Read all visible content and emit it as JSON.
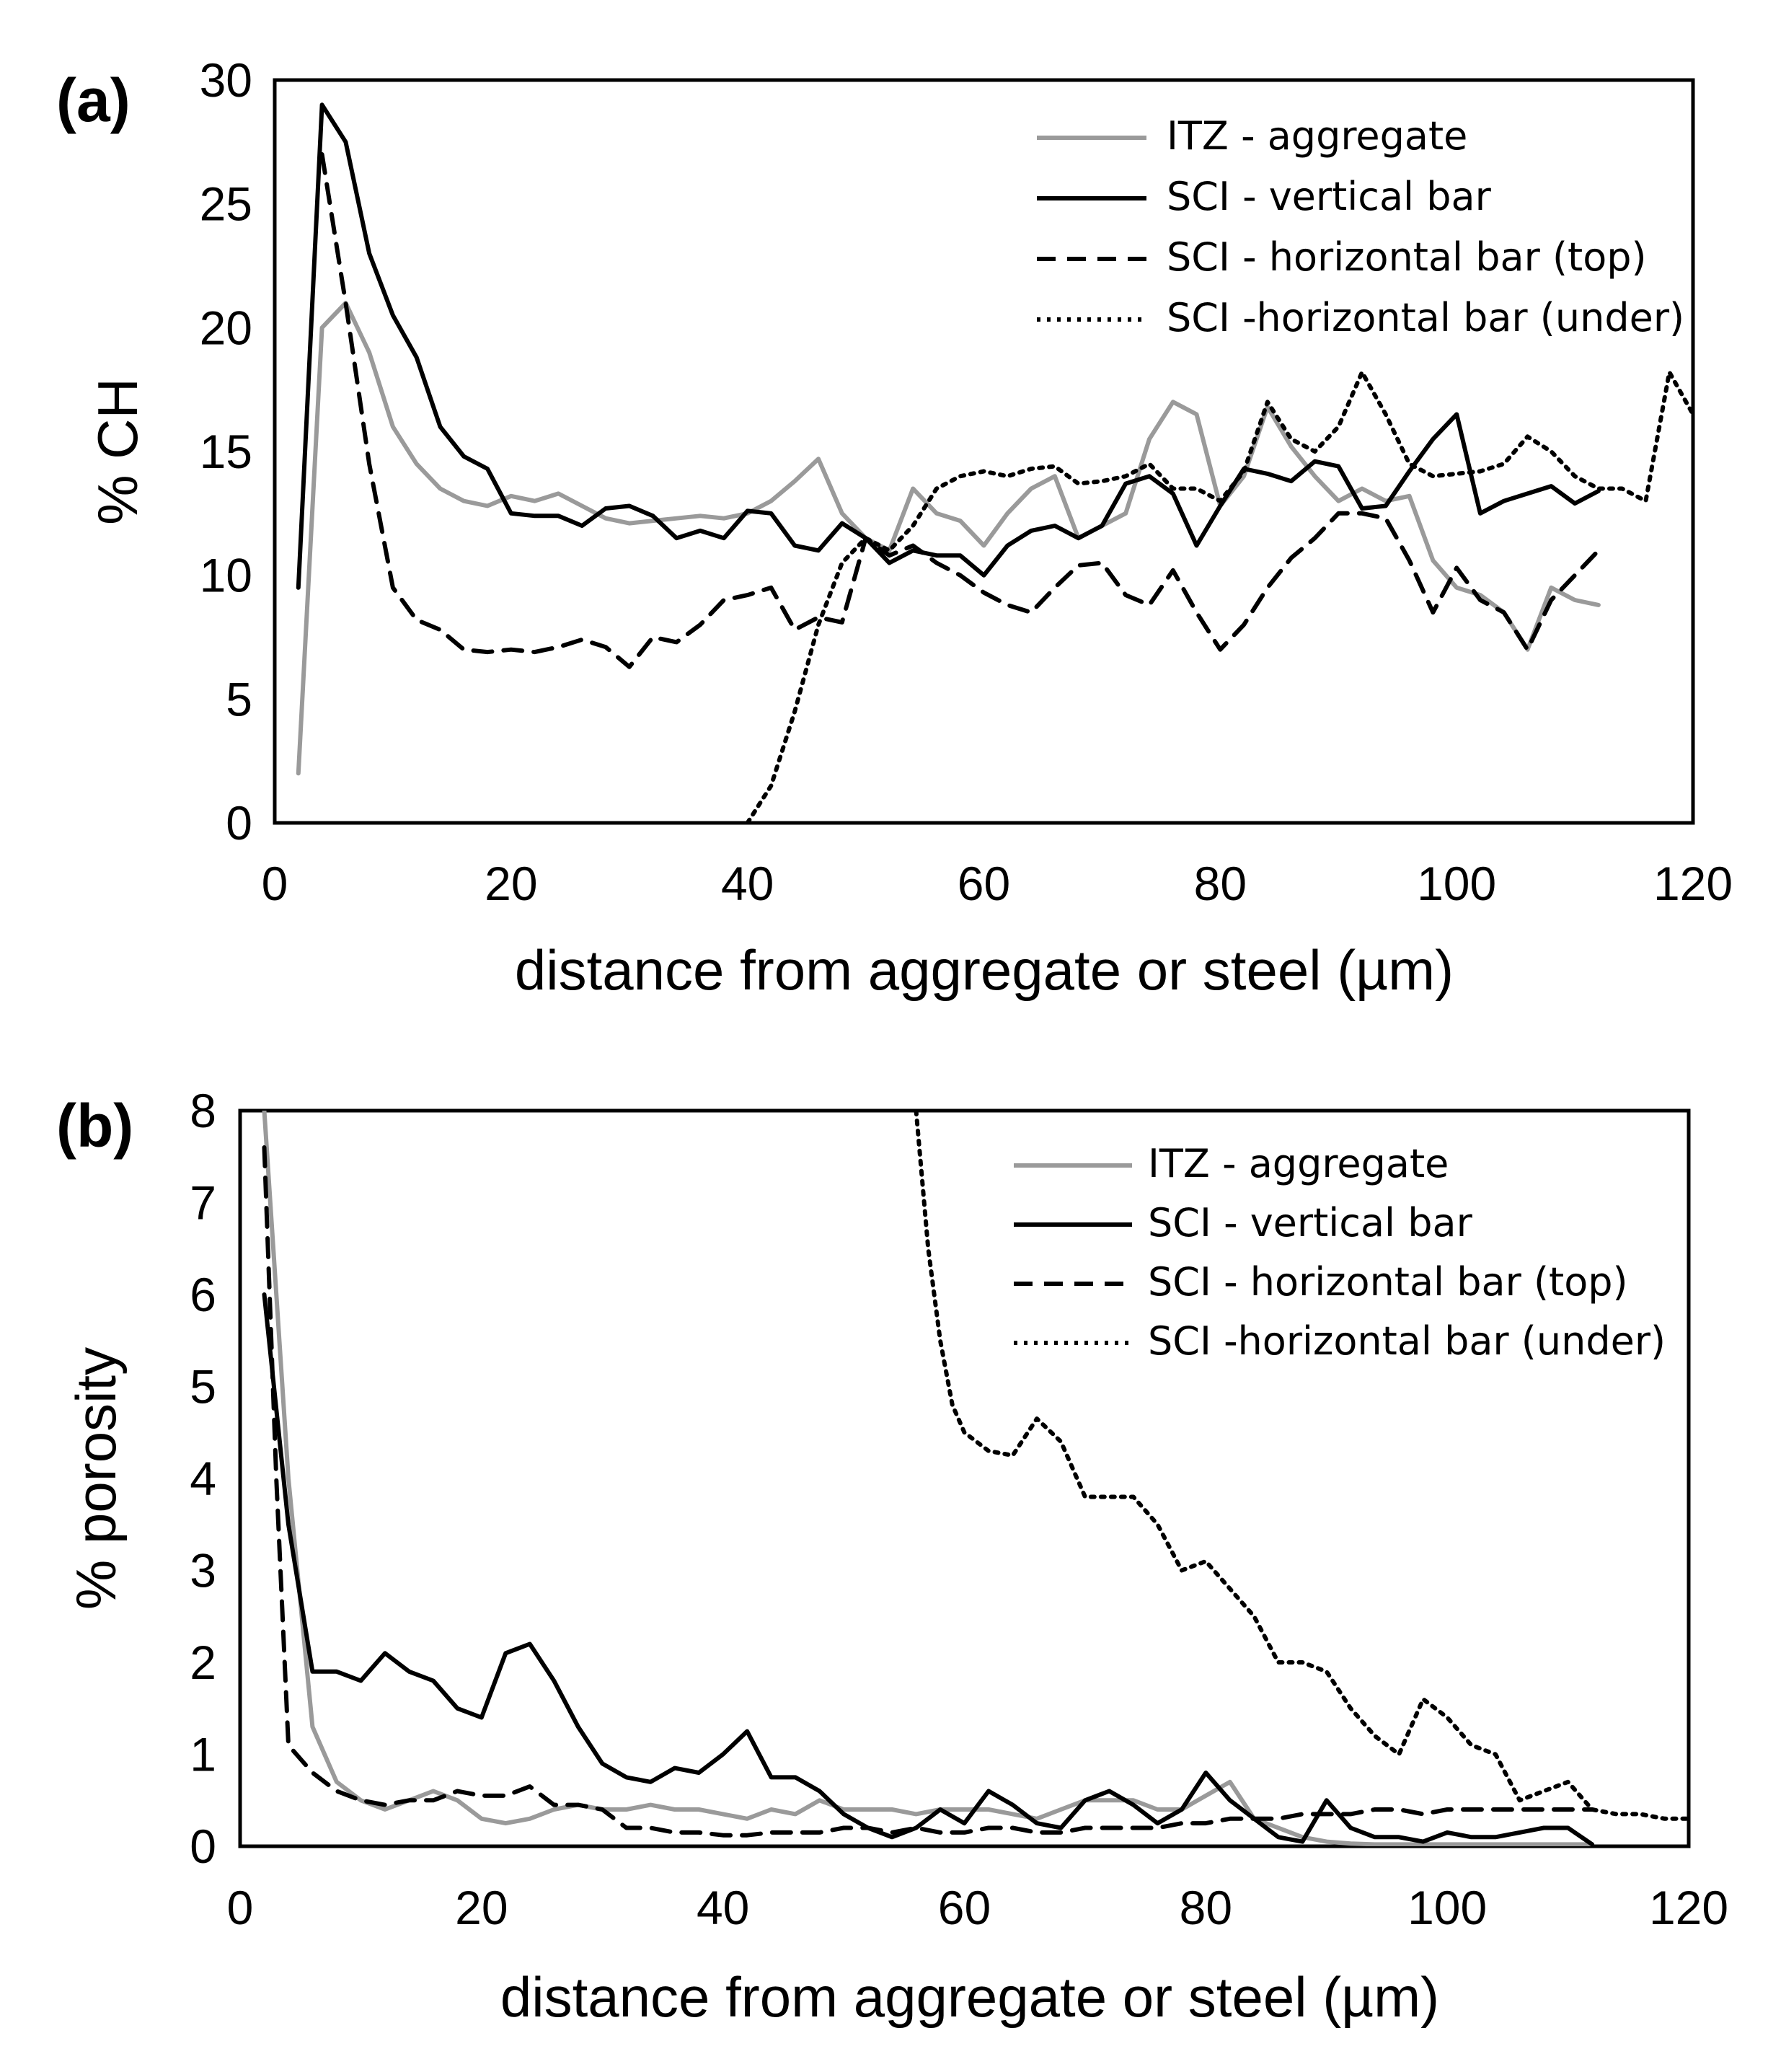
{
  "colors": {
    "itz": "#9a9a9a",
    "black": "#000000"
  },
  "chart_data": [
    {
      "type": "line",
      "panel_label": "(a)",
      "xlabel": "distance from aggregate or steel (µm)",
      "ylabel": "% CH",
      "xlim": [
        0,
        120
      ],
      "ylim": [
        0,
        30
      ],
      "xticks": [
        "0",
        "20",
        "40",
        "60",
        "80",
        "100",
        "120"
      ],
      "yticks": [
        "0",
        "5",
        "10",
        "15",
        "20",
        "25",
        "30"
      ],
      "legend_position": "top-right",
      "series": [
        {
          "name": "ITZ - aggregate",
          "style": "gray-solid",
          "x": [
            2,
            4,
            6,
            8,
            10,
            12,
            14,
            16,
            18,
            20,
            22,
            24,
            26,
            28,
            30,
            32,
            34,
            36,
            38,
            40,
            42,
            44,
            46,
            48,
            50,
            52,
            54,
            56,
            58,
            60,
            62,
            64,
            66,
            68,
            70,
            72,
            74,
            76,
            78,
            80,
            82,
            84,
            86,
            88,
            90,
            92,
            94,
            96,
            98,
            100,
            102,
            104,
            106,
            108,
            110,
            112
          ],
          "y": [
            2,
            20,
            21,
            19,
            16,
            14.5,
            13.5,
            13,
            12.8,
            13.2,
            13,
            13.3,
            12.8,
            12.3,
            12.1,
            12.2,
            12.3,
            12.4,
            12.3,
            12.5,
            13,
            13.8,
            14.7,
            12.5,
            11.5,
            11,
            13.5,
            12.5,
            12.2,
            11.2,
            12.5,
            13.5,
            14,
            11.5,
            12,
            12.5,
            15.5,
            17,
            16.5,
            12.8,
            14,
            16.8,
            15.2,
            14,
            13,
            13.5,
            13,
            13.2,
            10.6,
            9.5,
            9.2,
            8.5,
            7,
            9.5,
            9,
            8.8
          ]
        },
        {
          "name": "SCI - vertical bar",
          "style": "black-solid",
          "x": [
            2,
            4,
            6,
            8,
            10,
            12,
            14,
            16,
            18,
            20,
            22,
            24,
            26,
            28,
            30,
            32,
            34,
            36,
            38,
            40,
            42,
            44,
            46,
            48,
            50,
            52,
            54,
            56,
            58,
            60,
            62,
            64,
            66,
            68,
            70,
            72,
            74,
            76,
            78,
            80,
            82,
            84,
            86,
            88,
            90,
            92,
            94,
            96,
            98,
            100,
            102,
            104,
            106,
            108,
            110,
            112
          ],
          "y": [
            9.5,
            29,
            27.5,
            23,
            20.5,
            18.8,
            16,
            14.8,
            14.3,
            12.5,
            12.4,
            12.4,
            12,
            12.7,
            12.8,
            12.4,
            11.5,
            11.8,
            11.5,
            12.6,
            12.5,
            11.2,
            11,
            12.1,
            11.5,
            10.5,
            11,
            10.8,
            10.8,
            10,
            11.2,
            11.8,
            12,
            11.5,
            12,
            13.7,
            14,
            13.3,
            11.2,
            12.8,
            14.3,
            14.1,
            13.8,
            14.6,
            14.4,
            12.7,
            12.8,
            14.2,
            15.5,
            16.5,
            12.5,
            13,
            13.3,
            13.6,
            12.9,
            13.4
          ]
        },
        {
          "name": "SCI - horizontal bar (top)",
          "style": "black-dashed",
          "x": [
            4,
            6,
            8,
            10,
            12,
            14,
            16,
            18,
            20,
            22,
            24,
            26,
            28,
            30,
            32,
            34,
            36,
            38,
            40,
            42,
            44,
            46,
            48,
            50,
            52,
            54,
            56,
            58,
            60,
            62,
            64,
            66,
            68,
            70,
            72,
            74,
            76,
            78,
            80,
            82,
            84,
            86,
            88,
            90,
            92,
            94,
            96,
            98,
            100,
            102,
            104,
            106,
            108,
            110,
            112
          ],
          "y": [
            27,
            21,
            14.5,
            9.5,
            8.2,
            7.8,
            7,
            6.9,
            7,
            6.9,
            7.1,
            7.4,
            7.1,
            6.3,
            7.5,
            7.3,
            8,
            9,
            9.2,
            9.5,
            7.8,
            8.3,
            8.1,
            11.5,
            10.8,
            11.2,
            10.5,
            10,
            9.3,
            8.8,
            8.5,
            9.5,
            10.4,
            10.5,
            9.2,
            8.8,
            10.2,
            8.5,
            7,
            8,
            9.5,
            10.7,
            11.5,
            12.5,
            12.5,
            12.3,
            10.6,
            8.5,
            10.3,
            9,
            8.5,
            7,
            9,
            10,
            11
          ]
        },
        {
          "name": "SCI -horizontal bar (under)",
          "style": "black-dotted",
          "x": [
            40,
            42,
            44,
            46,
            48,
            50,
            52,
            54,
            56,
            58,
            60,
            62,
            64,
            66,
            68,
            70,
            72,
            74,
            76,
            78,
            80,
            82,
            84,
            86,
            88,
            90,
            92,
            94,
            96,
            98,
            100,
            102,
            104,
            106,
            108,
            110,
            112,
            114,
            116,
            118,
            120
          ],
          "y": [
            0,
            1.5,
            4.5,
            8,
            10.5,
            11.5,
            11,
            12,
            13.5,
            14,
            14.2,
            14,
            14.3,
            14.4,
            13.7,
            13.8,
            14,
            14.5,
            13.5,
            13.5,
            13,
            14.2,
            17,
            15.5,
            15,
            16,
            18.2,
            16.5,
            14.5,
            14,
            14.1,
            14.2,
            14.5,
            15.6,
            15,
            14,
            13.5,
            13.5,
            13,
            18.2,
            16.5
          ]
        }
      ]
    },
    {
      "type": "line",
      "panel_label": "(b)",
      "xlabel": "distance from aggregate or steel (µm)",
      "ylabel": "% porosity",
      "xlim": [
        0,
        120
      ],
      "ylim": [
        0,
        8
      ],
      "xticks": [
        "0",
        "20",
        "40",
        "60",
        "80",
        "100",
        "120"
      ],
      "yticks": [
        "0",
        "1",
        "2",
        "3",
        "4",
        "5",
        "6",
        "7",
        "8"
      ],
      "legend_position": "top-right",
      "series": [
        {
          "name": "ITZ - aggregate",
          "style": "gray-solid",
          "x": [
            2,
            4,
            6,
            8,
            10,
            12,
            14,
            16,
            18,
            20,
            22,
            24,
            26,
            28,
            30,
            32,
            34,
            36,
            38,
            40,
            42,
            44,
            46,
            48,
            50,
            52,
            54,
            56,
            58,
            60,
            62,
            64,
            66,
            68,
            70,
            72,
            74,
            76,
            78,
            80,
            82,
            84,
            86,
            88,
            90,
            92,
            94,
            96,
            98,
            100,
            102,
            104,
            106,
            108,
            110,
            112
          ],
          "y": [
            8,
            4,
            1.3,
            0.7,
            0.5,
            0.4,
            0.5,
            0.6,
            0.5,
            0.3,
            0.25,
            0.3,
            0.4,
            0.45,
            0.4,
            0.4,
            0.45,
            0.4,
            0.4,
            0.35,
            0.3,
            0.4,
            0.35,
            0.5,
            0.4,
            0.4,
            0.4,
            0.35,
            0.4,
            0.4,
            0.4,
            0.35,
            0.3,
            0.4,
            0.5,
            0.5,
            0.5,
            0.4,
            0.4,
            0.55,
            0.7,
            0.3,
            0.2,
            0.1,
            0.05,
            0.03,
            0.02,
            0.02,
            0.02,
            0.02,
            0.02,
            0.02,
            0.02,
            0.02,
            0.02,
            0.02
          ]
        },
        {
          "name": "SCI - vertical bar",
          "style": "black-solid",
          "x": [
            2,
            4,
            6,
            8,
            10,
            12,
            14,
            16,
            18,
            20,
            22,
            24,
            26,
            28,
            30,
            32,
            34,
            36,
            38,
            40,
            42,
            44,
            46,
            48,
            50,
            52,
            54,
            56,
            58,
            60,
            62,
            64,
            66,
            68,
            70,
            72,
            74,
            76,
            78,
            80,
            82,
            84,
            86,
            88,
            90,
            92,
            94,
            96,
            98,
            100,
            102,
            104,
            106,
            108,
            110,
            112
          ],
          "y": [
            6,
            3.5,
            1.9,
            1.9,
            1.8,
            2.1,
            1.9,
            1.8,
            1.5,
            1.4,
            2.1,
            2.2,
            1.8,
            1.3,
            0.9,
            0.75,
            0.7,
            0.85,
            0.8,
            1.0,
            1.25,
            0.75,
            0.75,
            0.6,
            0.35,
            0.2,
            0.1,
            0.2,
            0.4,
            0.25,
            0.6,
            0.45,
            0.25,
            0.2,
            0.5,
            0.6,
            0.45,
            0.25,
            0.4,
            0.8,
            0.5,
            0.3,
            0.1,
            0.05,
            0.5,
            0.2,
            0.1,
            0.1,
            0.05,
            0.15,
            0.1,
            0.1,
            0.15,
            0.2,
            0.2,
            0.02
          ]
        },
        {
          "name": "SCI - horizontal bar (top)",
          "style": "black-dashed",
          "x": [
            2,
            3,
            4,
            6,
            8,
            10,
            12,
            14,
            16,
            18,
            20,
            22,
            24,
            26,
            28,
            30,
            32,
            34,
            36,
            38,
            40,
            42,
            44,
            46,
            48,
            50,
            52,
            54,
            56,
            58,
            60,
            62,
            64,
            66,
            68,
            70,
            72,
            74,
            76,
            78,
            80,
            82,
            84,
            86,
            88,
            90,
            92,
            94,
            96,
            98,
            100,
            102,
            104,
            106,
            108,
            110,
            112
          ],
          "y": [
            7.6,
            4,
            1.1,
            0.8,
            0.6,
            0.5,
            0.45,
            0.5,
            0.5,
            0.6,
            0.55,
            0.55,
            0.65,
            0.45,
            0.45,
            0.4,
            0.2,
            0.2,
            0.15,
            0.15,
            0.12,
            0.12,
            0.15,
            0.15,
            0.15,
            0.2,
            0.2,
            0.15,
            0.2,
            0.15,
            0.15,
            0.2,
            0.2,
            0.15,
            0.15,
            0.2,
            0.2,
            0.2,
            0.2,
            0.25,
            0.25,
            0.3,
            0.3,
            0.3,
            0.35,
            0.35,
            0.35,
            0.4,
            0.4,
            0.35,
            0.4,
            0.4,
            0.4,
            0.4,
            0.4,
            0.4,
            0.4
          ]
        },
        {
          "name": "SCI -horizontal bar (under)",
          "style": "black-dotted",
          "x": [
            56,
            57,
            58,
            59,
            60,
            62,
            64,
            66,
            68,
            70,
            72,
            74,
            76,
            78,
            80,
            82,
            84,
            86,
            88,
            90,
            92,
            94,
            96,
            98,
            100,
            102,
            104,
            106,
            108,
            110,
            112,
            114,
            116,
            118,
            120
          ],
          "y": [
            8,
            6.5,
            5.5,
            4.8,
            4.5,
            4.3,
            4.25,
            4.65,
            4.4,
            3.8,
            3.8,
            3.8,
            3.5,
            3.0,
            3.1,
            2.8,
            2.5,
            2.0,
            2.0,
            1.9,
            1.5,
            1.2,
            1.0,
            1.6,
            1.4,
            1.1,
            1.0,
            0.5,
            0.6,
            0.7,
            0.4,
            0.35,
            0.35,
            0.3,
            0.3
          ]
        }
      ]
    }
  ]
}
